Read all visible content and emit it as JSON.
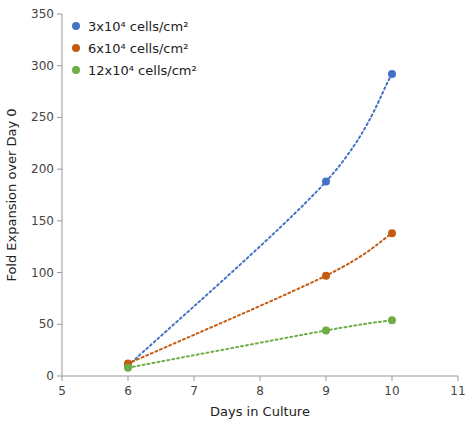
{
  "chart_data": {
    "type": "line",
    "x": [
      6,
      9,
      10
    ],
    "series": [
      {
        "name": "3x10⁴ cells/cm²",
        "color": "#4472C4",
        "values": [
          10,
          188,
          292
        ]
      },
      {
        "name": "6x10⁴ cells/cm²",
        "color": "#C55A11",
        "values": [
          12,
          97,
          138
        ]
      },
      {
        "name": "12x10⁴ cells/cm²",
        "color": "#70AD47",
        "values": [
          8,
          44,
          54
        ]
      }
    ],
    "xlabel": "Days in Culture",
    "ylabel": "Fold Expansion over Day 0",
    "xlim": [
      5,
      11
    ],
    "ylim": [
      0,
      350
    ],
    "xticks": [
      5,
      6,
      7,
      8,
      9,
      10,
      11
    ],
    "yticks": [
      0,
      50,
      100,
      150,
      200,
      250,
      300,
      350
    ],
    "line_style": "dotted",
    "marker": "circle",
    "legend": "upper left",
    "grid": false
  }
}
